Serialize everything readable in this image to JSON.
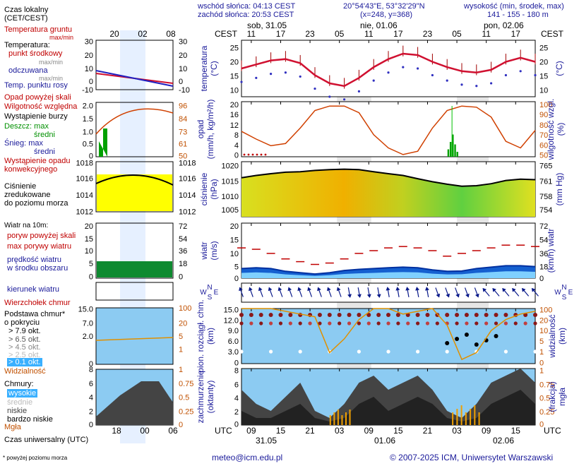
{
  "header": {
    "sunrise": "wschód słońca: 04:13 CEST",
    "sunset": "zachód słońca: 20:53 CEST",
    "coords": "20°54'43\"E, 53°32'29\"N",
    "grid": "(x=248, y=368)",
    "alt_title": "wysokość (min, środek, max)",
    "alt_values": "141 - 155 - 180 m"
  },
  "timeline": {
    "cest_label": "CEST",
    "utc_label": "UTC",
    "day_labels": [
      "sob, 31.05",
      "nie, 01.06",
      "pon, 02.06"
    ],
    "date_labels": [
      "31.05",
      "01.06",
      "02.06"
    ],
    "cest_ticks": [
      "11",
      "17",
      "23",
      "05",
      "11",
      "17",
      "23",
      "05",
      "11",
      "17"
    ],
    "utc_ticks": [
      "09",
      "15",
      "21",
      "03",
      "09",
      "15",
      "21",
      "03",
      "09",
      "15"
    ]
  },
  "legend": {
    "time_title": "Czas lokalny\n(CET/CEST)",
    "time_ticks": [
      "20",
      "02",
      "08"
    ],
    "utc_ticks": [
      "18",
      "00",
      "06"
    ],
    "utc_title": "Czas uniwersalny (UTC)",
    "soil": "Temperatura gruntu",
    "soil_range": "max/min",
    "temp_title": "Temperatura:",
    "temp_mid": "punkt środkowy",
    "temp_maxmin": "max/min",
    "temp_felt": "odczuwana",
    "temp_felt_maxmin": "max/min",
    "dew": "Temp. punktu rosy",
    "precip_above": "Opad powyżej skali",
    "humidity": "Wilgotność względna",
    "storm": "Wystąpienie burzy",
    "rain_max": "Deszcz: max",
    "rain_avg": "średni",
    "snow_max": "Śnieg: max",
    "snow_avg": "średni",
    "conv": "Wystąpienie opadu\nkonwekcyjnego",
    "pressure_desc": "Ciśnienie\nzredukowane\ndo poziomu morza",
    "wind_title": "Wiatr na 10m:",
    "gust_above": "poryw powyżej skali",
    "gust_max": "max porywy wiatru",
    "wind_speed": "prędkość wiatru\nw środku obszaru",
    "wind_dir": "kierunek wiatru",
    "cb_top": "Wierzchołek chmur",
    "cloud_base": "Podstawa chmur*\no pokryciu",
    "okt": [
      "> 7.9 okt.",
      "> 6.5 okt.",
      "> 4.5 okt.",
      "> 2.5 okt.",
      "> 0.1 okt."
    ],
    "visibility": "Widzialność",
    "clouds_title": "Chmury:",
    "cloud_layers": [
      "wysokie",
      "średnie",
      "niskie",
      "bardzo niskie"
    ],
    "fog": "Mgła",
    "footnote": "* powyżej poziomu morza"
  },
  "panels": {
    "temp": {
      "ylabel": "temperatura\n(°C)",
      "ticks": [
        "25",
        "20",
        "15",
        "10"
      ],
      "ticks_r": [
        "25",
        "20",
        "15",
        "10"
      ],
      "legend_ticks": [
        "30",
        "20",
        "10",
        "0",
        "-10"
      ]
    },
    "precip": {
      "ylabel": "opad\n(mm/h, kg/m²/h)",
      "ylabel_r": "wilgotność wzgl.\n(%)",
      "ticks": [
        "20",
        "16",
        "12",
        "8",
        "4",
        "0"
      ],
      "ticks_r": [
        "100",
        "90",
        "80",
        "70",
        "60",
        "50"
      ],
      "legend_ticks": [
        "2.0",
        "1.5",
        "1.0",
        "0.5",
        "0"
      ],
      "legend_ticks_r": [
        "96",
        "84",
        "73",
        "61",
        "50"
      ]
    },
    "pressure": {
      "ylabel": "ciśnienie\n(hPa)",
      "ylabel_r": "(mm Hg)",
      "ticks": [
        "1020",
        "1015",
        "1010",
        "1005"
      ],
      "ticks_r": [
        "765",
        "761",
        "758",
        "754"
      ],
      "legend_ticks": [
        "1018",
        "1016",
        "1014",
        "1012"
      ],
      "legend_ticks_r": [
        "1018",
        "1016",
        "1014",
        "1012"
      ]
    },
    "wind": {
      "ylabel": "wiatr\n(m/s)",
      "ylabel_r": "(km/h) wiatr",
      "ticks": [
        "20",
        "15",
        "10",
        "5",
        "0"
      ],
      "ticks_r": [
        "72",
        "54",
        "36",
        "18",
        "0"
      ],
      "legend_ticks": [
        "20",
        "15",
        "10",
        "5",
        "0"
      ],
      "legend_ticks_r": [
        "72",
        "54",
        "36",
        "18",
        "0"
      ]
    },
    "dir": {
      "compass": [
        "N",
        "W",
        "S",
        "E"
      ]
    },
    "cloudbase": {
      "ylabel": "pion. rozciągł. chm.\n(km)",
      "ylabel_r": "widzialność\n(km)",
      "ticks": [
        "15.0",
        "12.0",
        "9.0",
        "6.0",
        "3.0",
        "0"
      ],
      "ticks_r": [
        "100",
        "20",
        "10",
        "5",
        "1",
        "0"
      ],
      "legend_ticks": [
        "15.0",
        "7.0",
        "2.0",
        "0"
      ],
      "legend_ticks_r": [
        "100",
        "20",
        "5",
        "1"
      ]
    },
    "cover": {
      "ylabel": "zachmurzenie\n(oktanty)",
      "ylabel_r": "(frakcja)\nmgła",
      "ticks": [
        "8",
        "6",
        "4",
        "2",
        "0"
      ],
      "ticks_r": [
        "1",
        "0.75",
        "0.5",
        "0.25",
        "0"
      ],
      "legend_ticks": [
        "8",
        "6",
        "4",
        "2",
        "0"
      ],
      "legend_ticks_r": [
        "1",
        "0.75",
        "0.5",
        "0.25",
        "0"
      ]
    }
  },
  "chart_data": {
    "type": "line",
    "x_hours_utc": [
      0,
      3,
      6,
      9,
      12,
      15,
      18,
      21,
      24,
      27,
      30,
      33,
      36,
      39,
      42,
      45,
      48,
      51,
      54,
      57,
      60
    ],
    "series": [
      {
        "name": "temperatura",
        "values": [
          16.5,
          18,
          19.5,
          20,
          18.5,
          14,
          11,
          10,
          13,
          17,
          20,
          22,
          21.5,
          19,
          17,
          15.5,
          15,
          16,
          19,
          20.5,
          19
        ]
      },
      {
        "name": "wilgotność wzgl.",
        "values": [
          73,
          66,
          60,
          62,
          76,
          92,
          96,
          96,
          90,
          70,
          58,
          52,
          55,
          76,
          92,
          96,
          95,
          86,
          64,
          58,
          74
        ]
      },
      {
        "name": "ciśnienie",
        "values": [
          1015.6,
          1016.5,
          1017.2,
          1017.8,
          1018.0,
          1018.5,
          1018.8,
          1019.0,
          1018.8,
          1018.0,
          1017.2,
          1016.5,
          1015.2,
          1014.0,
          1013.0,
          1012.2,
          1012.4,
          1013.2,
          1014.5,
          1015.0,
          1014.8
        ]
      },
      {
        "name": "max porywy wiatru",
        "values": [
          11,
          10.5,
          9,
          7,
          6,
          5,
          5.5,
          7,
          9,
          10,
          11,
          11.5,
          11,
          10,
          8,
          9,
          10,
          11,
          12,
          12,
          11.5
        ]
      },
      {
        "name": "prędkość wiatru",
        "values": [
          3.5,
          3.8,
          3.5,
          2.5,
          2,
          1.5,
          2,
          2.8,
          3.2,
          3.5,
          3.8,
          4,
          3.8,
          3,
          2.5,
          2.6,
          3.5,
          4,
          4.5,
          4.5,
          4.2
        ]
      },
      {
        "name": "widzialność",
        "values": [
          20,
          20,
          20,
          19,
          18,
          17,
          4,
          9,
          16,
          20,
          20,
          18,
          19,
          20,
          14,
          1.5,
          4,
          12,
          16,
          18,
          19
        ]
      }
    ],
    "precip_events": [
      {
        "hour_utc": 43,
        "value": 5.5
      }
    ],
    "pressure_range": [
      1000,
      1022
    ],
    "temp_range": [
      6,
      27
    ],
    "wind_range": [
      0,
      20
    ],
    "humidity_range": [
      50,
      100
    ],
    "precip_range": [
      0,
      20
    ],
    "vis_range": [
      0,
      20
    ]
  }
}
